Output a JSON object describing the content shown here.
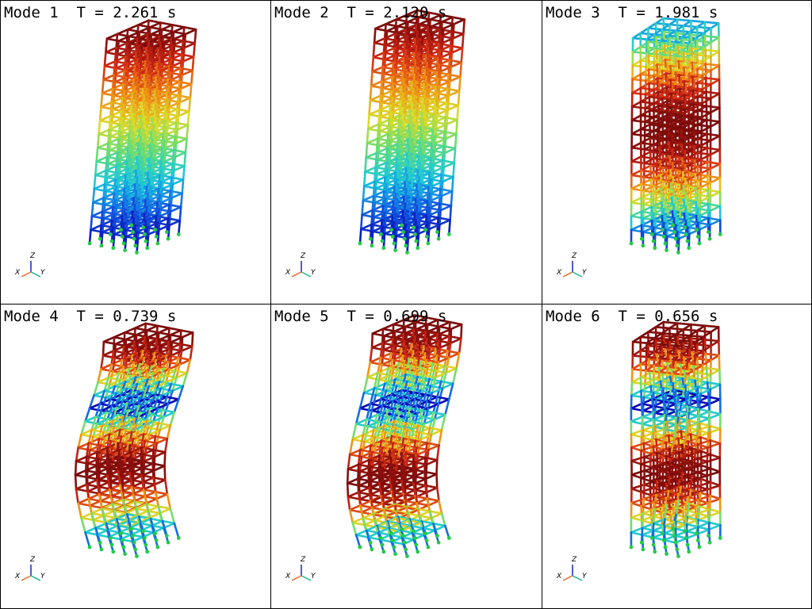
{
  "panels": [
    {
      "title": "Mode 1  T = 2.261 s",
      "mode": 1
    },
    {
      "title": "Mode 2  T = 2.120 s",
      "mode": 2
    },
    {
      "title": "Mode 3  T = 1.981 s",
      "mode": 3
    },
    {
      "title": "Mode 4  T = 0.739 s",
      "mode": 4
    },
    {
      "title": "Mode 5  T = 0.699 s",
      "mode": 5
    },
    {
      "title": "Mode 6  T = 0.656 s",
      "mode": 6
    }
  ],
  "axes": {
    "z": "Z",
    "x": "X",
    "y": "Y"
  },
  "colors": {
    "colormap": [
      "#0a0ab4",
      "#1464e6",
      "#19c8dc",
      "#64dc78",
      "#dcdc28",
      "#f08c14",
      "#d22814",
      "#7a0a0a"
    ],
    "support_node": "#22cc44",
    "axis_z": "#2233cc",
    "axis_x": "#ee7744",
    "axis_y": "#33bb99"
  }
}
